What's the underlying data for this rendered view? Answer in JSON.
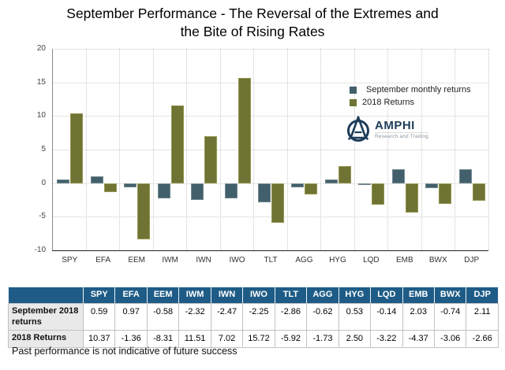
{
  "title": {
    "line1": "September Performance - The Reversal of the Extremes and",
    "line2": "the Bite of Rising Rates"
  },
  "logo": {
    "name": "AMPHI",
    "tagline": "Research and Trading"
  },
  "footer": "Past performance is not indicative of future success",
  "chart_data": {
    "type": "bar",
    "title": "September Performance - The Reversal of the Extremes and the Bite of Rising Rates",
    "categories": [
      "SPY",
      "EFA",
      "EEM",
      "IWM",
      "IWN",
      "IWO",
      "TLT",
      "AGG",
      "HYG",
      "LQD",
      "EMB",
      "BWX",
      "DJP"
    ],
    "series": [
      {
        "name": "September monthly returns",
        "color": "#42606b",
        "edge_color": "#72888f",
        "values": [
          0.59,
          0.97,
          -0.58,
          -2.32,
          -2.47,
          -2.25,
          -2.86,
          -0.62,
          0.53,
          -0.14,
          2.03,
          -0.74,
          2.11
        ]
      },
      {
        "name": "2018 Returns",
        "color": "#6f7333",
        "edge_color": "#94964f",
        "values": [
          10.37,
          -1.36,
          -8.31,
          11.51,
          7.02,
          15.72,
          -5.92,
          -1.73,
          2.5,
          -3.22,
          -4.37,
          -3.06,
          -2.66
        ]
      }
    ],
    "xlabel": "",
    "ylabel": "",
    "ylim": [
      -10,
      20
    ],
    "yticks": [
      20,
      15,
      10,
      5,
      0,
      -5,
      -10
    ],
    "grid": true,
    "legend_position": "top-right"
  },
  "table": {
    "columns": [
      "SPY",
      "EFA",
      "EEM",
      "IWM",
      "IWN",
      "IWO",
      "TLT",
      "AGG",
      "HYG",
      "LQD",
      "EMB",
      "BWX",
      "DJP"
    ],
    "corner_label": "",
    "rows": [
      {
        "label": "September 2018 returns",
        "values": [
          "0.59",
          "0.97",
          "-0.58",
          "-2.32",
          "-2.47",
          "-2.25",
          "-2.86",
          "-0.62",
          "0.53",
          "-0.14",
          "2.03",
          "-0.74",
          "2.11"
        ]
      },
      {
        "label": "2018 Returns",
        "values": [
          "10.37",
          "-1.36",
          "-8.31",
          "11.51",
          "7.02",
          "15.72",
          "-5.92",
          "-1.73",
          "2.50",
          "-3.22",
          "-4.37",
          "-3.06",
          "-2.66"
        ]
      }
    ],
    "header_bg": "#1e5c87",
    "label_bg": "#e9e9e9"
  }
}
